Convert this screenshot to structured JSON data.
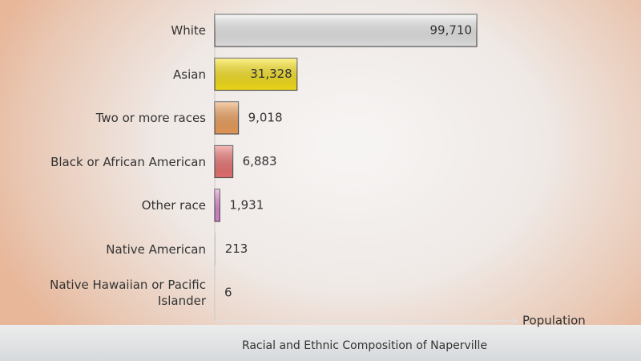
{
  "chart_data": {
    "type": "bar",
    "orientation": "horizontal",
    "title": "Racial and Ethnic Composition of Naperville",
    "x_label": "Population",
    "categories": [
      "White",
      "Asian",
      "Two or more races",
      "Black or African American",
      "Other race",
      "Native American",
      "Native Hawaiian or Pacific Islander"
    ],
    "values": [
      99710,
      31328,
      9018,
      6883,
      1931,
      213,
      6
    ],
    "value_labels": [
      "99,710",
      "31,328",
      "9,018",
      "6,883",
      "1,931",
      "213",
      "6"
    ],
    "colors": [
      "#eeeeee",
      "#ffe81a",
      "#f4a35c",
      "#f27575",
      "#e48ad8",
      "#b0b0b0",
      "#cccccc"
    ],
    "xlim": [
      0,
      100000
    ]
  }
}
